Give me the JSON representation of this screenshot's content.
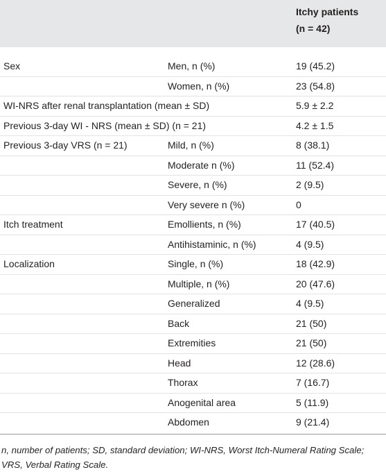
{
  "table": {
    "header": [
      "Itchy patients",
      "(n = 42)"
    ],
    "rows": [
      {
        "group": "Sex",
        "item": "Men, n (%)",
        "value": "19 (45.2)"
      },
      {
        "item": "Women, n (%)",
        "value": "23 (54.8)"
      },
      {
        "group": "WI-NRS after renal transplantation (mean ± SD)",
        "value": "5.9 ± 2.2"
      },
      {
        "group": "Previous 3-day WI - NRS (mean ± SD) (n = 21)",
        "value": "4.2 ± 1.5"
      },
      {
        "group": "Previous 3-day VRS (n = 21)",
        "item": "Mild, n (%)",
        "value": "8 (38.1)"
      },
      {
        "item": "Moderate n (%)",
        "value": "11 (52.4)"
      },
      {
        "item": "Severe, n (%)",
        "value": "2 (9.5)"
      },
      {
        "item": "Very severe n (%)",
        "value": "0"
      },
      {
        "group": "Itch treatment",
        "item": "Emollients, n (%)",
        "value": "17 (40.5)"
      },
      {
        "item": "Antihistaminic, n (%)",
        "value": "4 (9.5)"
      },
      {
        "group": "Localization",
        "item": "Single, n (%)",
        "value": "18 (42.9)"
      },
      {
        "item": "Multiple, n (%)",
        "value": "20 (47.6)"
      },
      {
        "item": "Generalized",
        "value": "4 (9.5)"
      },
      {
        "item": "Back",
        "value": "21 (50)"
      },
      {
        "item": "Extremities",
        "value": "21 (50)"
      },
      {
        "item": "Head",
        "value": "12 (28.6)"
      },
      {
        "item": "Thorax",
        "value": "7 (16.7)"
      },
      {
        "item": "Anogenital area",
        "value": "5 (11.9)"
      },
      {
        "item": "Abdomen",
        "value": "9 (21.4)"
      }
    ],
    "footnote": "n, number of patients; SD, standard deviation; WI-NRS, Worst Itch-Numeral Rating Scale; VRS, Verbal Rating Scale."
  }
}
